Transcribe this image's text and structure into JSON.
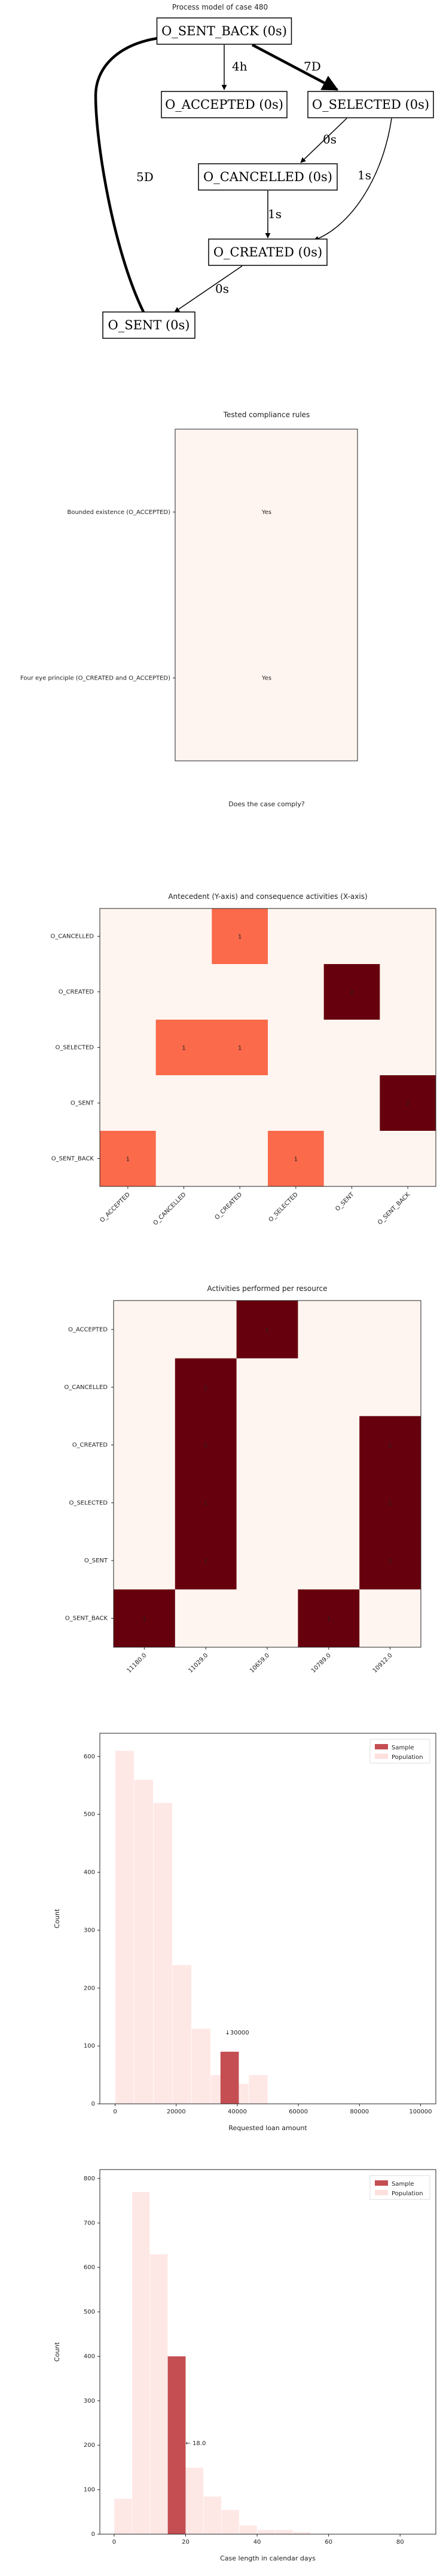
{
  "process_model": {
    "title": "Process model of case 480",
    "nodes": [
      {
        "id": "sent_back",
        "label": "O_SENT_BACK (0s)"
      },
      {
        "id": "accepted",
        "label": "O_ACCEPTED (0s)"
      },
      {
        "id": "selected",
        "label": "O_SELECTED (0s)"
      },
      {
        "id": "cancelled",
        "label": "O_CANCELLED (0s)"
      },
      {
        "id": "created",
        "label": "O_CREATED (0s)"
      },
      {
        "id": "sent",
        "label": "O_SENT (0s)"
      }
    ],
    "edges": [
      {
        "from": "sent_back",
        "to": "accepted",
        "label": "4h"
      },
      {
        "from": "sent_back",
        "to": "selected",
        "label": "7D"
      },
      {
        "from": "selected",
        "to": "cancelled",
        "label": "0s"
      },
      {
        "from": "selected",
        "to": "created",
        "label": "1s"
      },
      {
        "from": "cancelled",
        "to": "created",
        "label": "1s"
      },
      {
        "from": "created",
        "to": "sent",
        "label": "0s"
      },
      {
        "from": "sent",
        "to": "sent_back",
        "label": "5D"
      }
    ]
  },
  "chart_data": [
    {
      "type": "table",
      "title": "Tested compliance rules",
      "xlabel": "Does the case comply?",
      "rows": [
        {
          "rule": "Bounded existence (O_ACCEPTED)",
          "value": "Yes"
        },
        {
          "rule": "Four eye principle (O_CREATED and O_ACCEPTED)",
          "value": "Yes"
        }
      ]
    },
    {
      "type": "heatmap",
      "title": "Antecedent (Y-axis) and consequence activities (X-axis)",
      "x_categories": [
        "O_ACCEPTED",
        "O_CANCELLED",
        "O_CREATED",
        "O_SELECTED",
        "O_SENT",
        "O_SENT_BACK"
      ],
      "y_categories": [
        "O_CANCELLED",
        "O_CREATED",
        "O_SELECTED",
        "O_SENT",
        "O_SENT_BACK"
      ],
      "values": [
        [
          0,
          0,
          1,
          0,
          0,
          0
        ],
        [
          0,
          0,
          0,
          0,
          2,
          0
        ],
        [
          0,
          1,
          1,
          0,
          0,
          0
        ],
        [
          0,
          0,
          0,
          0,
          0,
          2
        ],
        [
          1,
          0,
          0,
          1,
          0,
          0
        ]
      ],
      "vmax": 2
    },
    {
      "type": "heatmap",
      "title": "Activities performed per resource",
      "x_categories": [
        "11180.0",
        "11029.0",
        "10659.0",
        "10789.0",
        "10912.0"
      ],
      "y_categories": [
        "O_ACCEPTED",
        "O_CANCELLED",
        "O_CREATED",
        "O_SELECTED",
        "O_SENT",
        "O_SENT_BACK"
      ],
      "values": [
        [
          0,
          0,
          1,
          0,
          0
        ],
        [
          0,
          1,
          0,
          0,
          0
        ],
        [
          0,
          1,
          0,
          0,
          1
        ],
        [
          0,
          1,
          0,
          0,
          1
        ],
        [
          0,
          1,
          0,
          0,
          1
        ],
        [
          1,
          0,
          0,
          1,
          0
        ]
      ],
      "vmax": 1
    },
    {
      "type": "bar",
      "title": "",
      "xlabel": "Requested loan amount",
      "ylabel": "Count",
      "xlim": [
        -5000,
        105000
      ],
      "ylim": [
        0,
        640
      ],
      "xticks": [
        0,
        20000,
        40000,
        60000,
        80000,
        100000
      ],
      "yticks": [
        0,
        100,
        200,
        300,
        400,
        500,
        600
      ],
      "legend": [
        "Sample",
        "Population"
      ],
      "legend_position": "top-right",
      "series": [
        {
          "name": "Population",
          "bins": [
            {
              "x0": 0,
              "x1": 6250,
              "value": 610
            },
            {
              "x0": 6250,
              "x1": 12500,
              "value": 560
            },
            {
              "x0": 12500,
              "x1": 18750,
              "value": 520
            },
            {
              "x0": 18750,
              "x1": 25000,
              "value": 240
            },
            {
              "x0": 25000,
              "x1": 31250,
              "value": 130
            },
            {
              "x0": 31250,
              "x1": 37500,
              "value": 50
            },
            {
              "x0": 37500,
              "x1": 43750,
              "value": 35
            },
            {
              "x0": 43750,
              "x1": 50000,
              "value": 50
            }
          ]
        },
        {
          "name": "Sample",
          "bins": [
            {
              "x0": 34500,
              "x1": 40500,
              "value": 90
            }
          ]
        }
      ],
      "annotation": {
        "text": "↓30000",
        "x": 36000,
        "y": 120
      }
    },
    {
      "type": "bar",
      "title": "",
      "xlabel": "Case length in calendar days",
      "ylabel": "Count",
      "xlim": [
        -4,
        90
      ],
      "ylim": [
        0,
        820
      ],
      "xticks": [
        0,
        20,
        40,
        60,
        80
      ],
      "yticks": [
        0,
        100,
        200,
        300,
        400,
        500,
        600,
        700,
        800
      ],
      "legend": [
        "Sample",
        "Population"
      ],
      "legend_position": "top-right",
      "series": [
        {
          "name": "Population",
          "bins": [
            {
              "x0": 0,
              "x1": 5,
              "value": 80
            },
            {
              "x0": 5,
              "x1": 10,
              "value": 770
            },
            {
              "x0": 10,
              "x1": 15,
              "value": 630
            },
            {
              "x0": 15,
              "x1": 20,
              "value": 390
            },
            {
              "x0": 20,
              "x1": 25,
              "value": 150
            },
            {
              "x0": 25,
              "x1": 30,
              "value": 85
            },
            {
              "x0": 30,
              "x1": 35,
              "value": 55
            },
            {
              "x0": 35,
              "x1": 40,
              "value": 20
            },
            {
              "x0": 40,
              "x1": 45,
              "value": 10
            },
            {
              "x0": 45,
              "x1": 50,
              "value": 10
            },
            {
              "x0": 50,
              "x1": 55,
              "value": 5
            }
          ]
        },
        {
          "name": "Sample",
          "bins": [
            {
              "x0": 15,
              "x1": 20,
              "value": 400
            }
          ]
        }
      ],
      "annotation": {
        "text": "← 18.0",
        "x": 20,
        "y": 200
      }
    }
  ],
  "colors": {
    "heat_low": "#fff5f0",
    "heat_mid": "#fb6a4a",
    "heat_high": "#67000d",
    "sample": "#c44e52",
    "population": "#fde0dd",
    "yes_text": "#4c72b0",
    "axis": "#222222"
  }
}
